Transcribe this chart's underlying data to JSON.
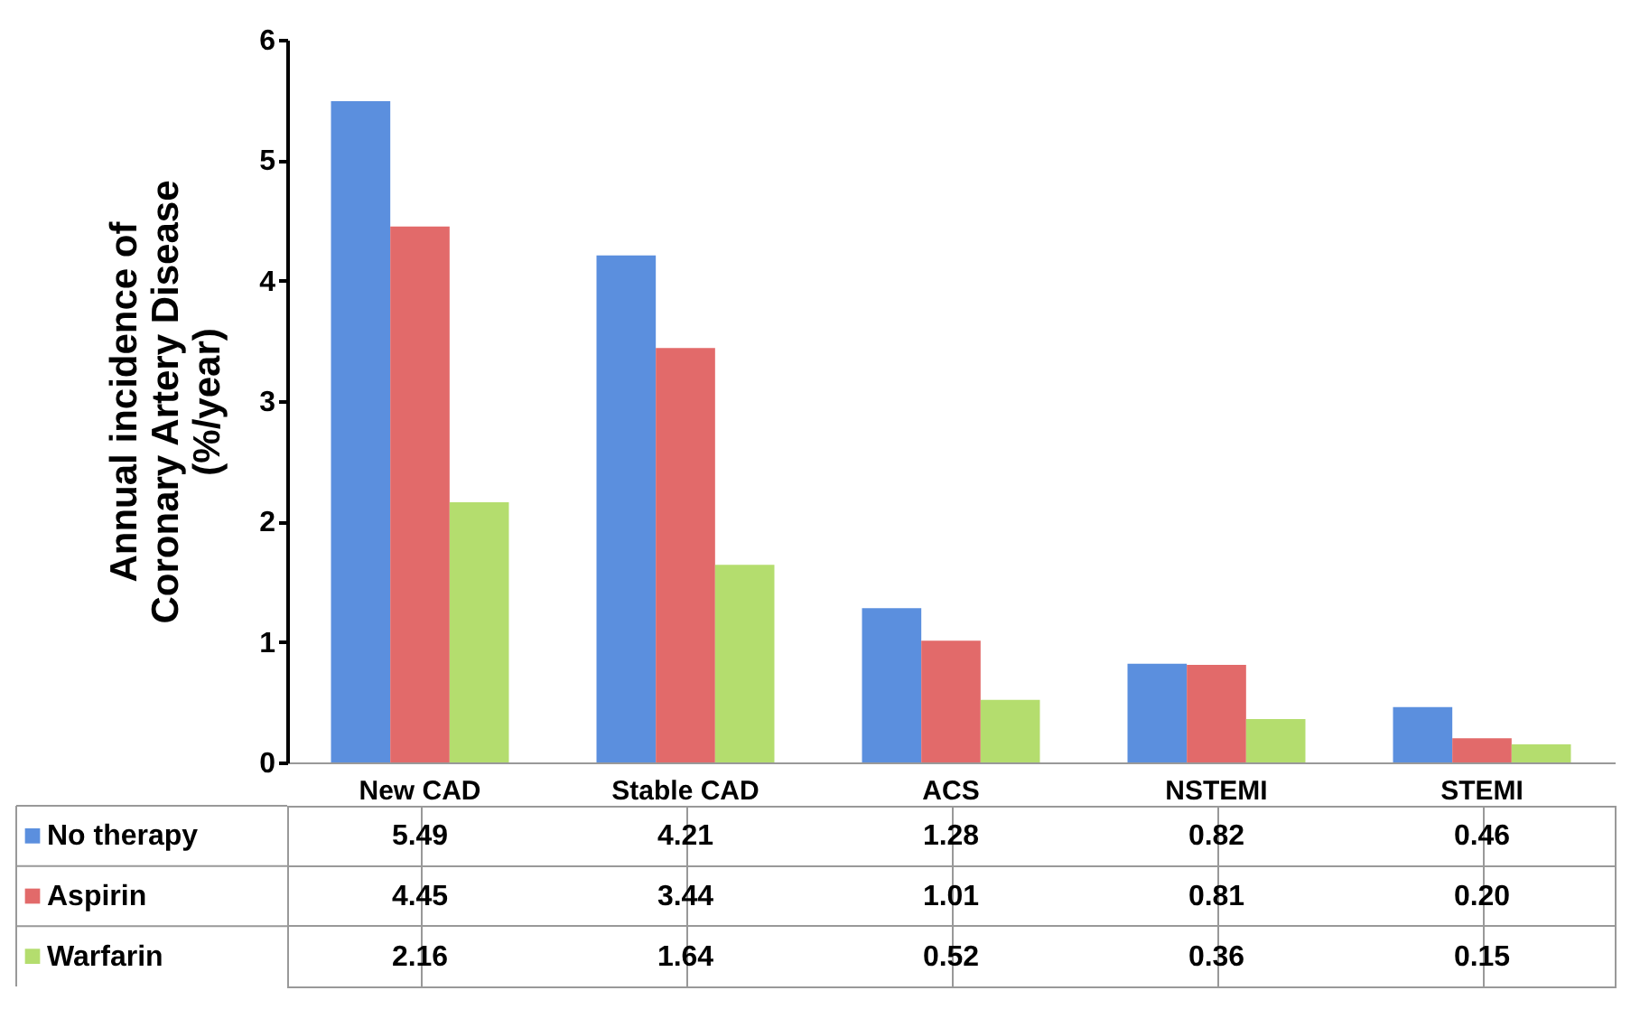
{
  "chart_data": {
    "type": "bar",
    "ylabel": "Annual incidence of\nCoronary Artery Disease\n(%/year)",
    "categories": [
      "New CAD",
      "Stable CAD",
      "ACS",
      "NSTEMI",
      "STEMI"
    ],
    "series": [
      {
        "name": "No therapy",
        "color": "#5b8fde",
        "values": [
          5.49,
          4.21,
          1.28,
          0.82,
          0.46
        ],
        "value_labels": [
          "5.49",
          "4.21",
          "1.28",
          "0.82",
          "0.46"
        ]
      },
      {
        "name": "Aspirin",
        "color": "#e26a6a",
        "values": [
          4.45,
          3.44,
          1.01,
          0.81,
          0.2
        ],
        "value_labels": [
          "4.45",
          "3.44",
          "1.01",
          "0.81",
          "0.20"
        ]
      },
      {
        "name": "Warfarin",
        "color": "#b4dd6e",
        "values": [
          2.16,
          1.64,
          0.52,
          0.36,
          0.15
        ],
        "value_labels": [
          "2.16",
          "1.64",
          "0.52",
          "0.36",
          "0.15"
        ]
      }
    ],
    "ylim": [
      0,
      6
    ],
    "yticks": [
      0,
      1,
      2,
      3,
      4,
      5,
      6
    ],
    "grid": false,
    "legend": "bottom"
  }
}
